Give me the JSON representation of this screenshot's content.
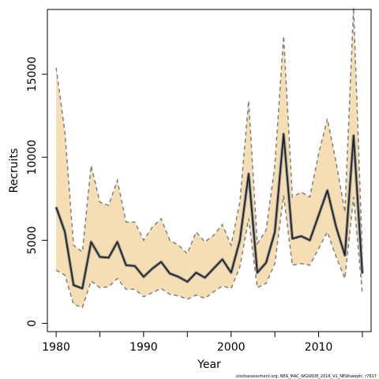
{
  "chart_data": {
    "type": "line",
    "title": "",
    "xlabel": "Year",
    "ylabel": "Recruits",
    "x": [
      1980,
      1981,
      1982,
      1983,
      1984,
      1985,
      1986,
      1987,
      1988,
      1989,
      1990,
      1991,
      1992,
      1993,
      1994,
      1995,
      1996,
      1997,
      1998,
      1999,
      2000,
      2001,
      2002,
      2003,
      2004,
      2005,
      2006,
      2007,
      2008,
      2009,
      2010,
      2011,
      2012,
      2013,
      2014,
      2015
    ],
    "series": [
      {
        "role": "estimate",
        "values": [
          7000,
          5500,
          2300,
          2100,
          4900,
          4000,
          3950,
          4900,
          3500,
          3450,
          2800,
          3300,
          3700,
          3000,
          2800,
          2500,
          3050,
          2750,
          3300,
          3850,
          3050,
          5000,
          9000,
          3050,
          3650,
          5500,
          11400,
          5100,
          5250,
          5000,
          6500,
          8000,
          5800,
          4100,
          11300,
          3000
        ]
      },
      {
        "role": "upper",
        "values": [
          15400,
          11500,
          4700,
          4300,
          9500,
          7300,
          7100,
          8600,
          6100,
          6100,
          5000,
          5800,
          6300,
          5000,
          4700,
          4200,
          5500,
          4900,
          5300,
          5950,
          4700,
          7300,
          13400,
          4800,
          5600,
          9500,
          17300,
          7600,
          7900,
          7600,
          10200,
          12300,
          9700,
          6700,
          19000,
          4200
        ]
      },
      {
        "role": "lower",
        "values": [
          3200,
          2900,
          1150,
          950,
          2550,
          2150,
          2200,
          2700,
          2050,
          2050,
          1600,
          1850,
          2100,
          1750,
          1650,
          1450,
          1700,
          1500,
          1900,
          2250,
          2100,
          3400,
          6300,
          2150,
          2400,
          3600,
          7700,
          3500,
          3600,
          3500,
          4500,
          5500,
          4000,
          2700,
          7600,
          1800
        ]
      }
    ],
    "xlim": [
      1979,
      2016
    ],
    "ylim": [
      -500,
      18900
    ],
    "xticks": [
      1980,
      1990,
      2000,
      2010
    ],
    "yticks": [
      0,
      5000,
      10000,
      15000
    ],
    "grid": false,
    "legend": "none",
    "colors": {
      "band": "#f5deb3",
      "band_edge": "#7f7f7f",
      "line": "#222222",
      "line_halo": "#9e9e9e"
    },
    "footnote": "stockassessment.org, NEA_MAC_WGWIDE_2016_V1_NEWsweptr, r7617"
  }
}
